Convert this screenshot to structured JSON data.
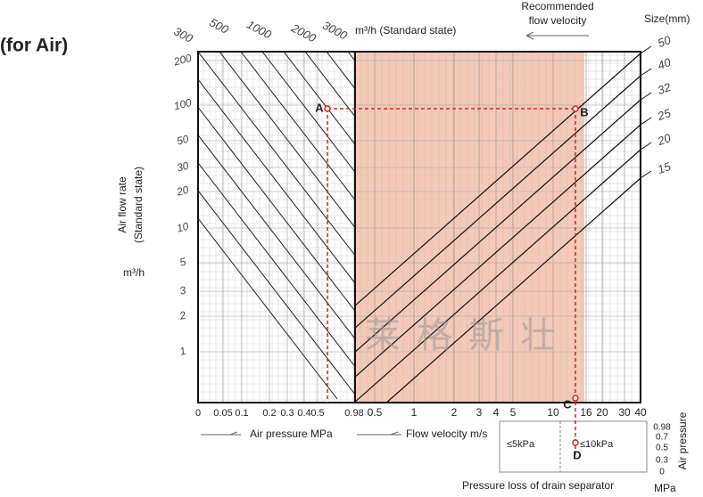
{
  "heading": "(for Air)",
  "top_scale": {
    "labels": [
      "300",
      "500",
      "1000",
      "2000",
      "3000"
    ],
    "unit": "m³/h (Standard state)"
  },
  "recommended": [
    "Recommended",
    "flow velocity"
  ],
  "size_title": "Size(mm)",
  "sizes": [
    "50",
    "40",
    "32",
    "25",
    "20",
    "15"
  ],
  "y_axis": {
    "title": [
      "Air flow rate",
      "(Standard state)"
    ],
    "unit": "m³/h",
    "labels": [
      "200",
      "100",
      "50",
      "30",
      "20",
      "10",
      "5",
      "3",
      "2",
      "1"
    ]
  },
  "pressure_axis": {
    "labels": [
      "0",
      "0.05",
      "0.1",
      "0.2",
      "0.3",
      "0.4",
      "0.5",
      "0.98"
    ],
    "title": "Air pressure MPa"
  },
  "velocity_axis": {
    "labels": [
      "0.5",
      "1",
      "2",
      "3",
      "4",
      "5",
      "10",
      "16",
      "20",
      "30",
      "40"
    ],
    "title": "Flow velocity m/s"
  },
  "points": [
    "A",
    "B",
    "C",
    "D"
  ],
  "drain": {
    "left": "≤5kPa",
    "right": "≤10kPa",
    "scale": [
      "0.98",
      "0.7",
      "0.5",
      "0.3",
      "0"
    ],
    "title": "Pressure loss of drain separator",
    "side_title": "Air pressure",
    "unit": "MPa"
  },
  "watermark": "莱格斯壮"
}
